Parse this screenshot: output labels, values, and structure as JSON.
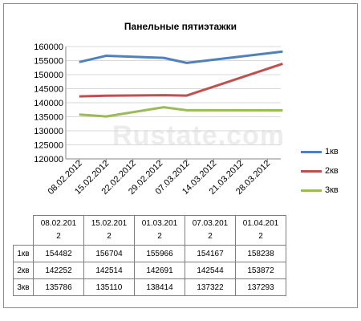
{
  "chart_data": {
    "type": "line",
    "title": "Панельные пятиэтажки",
    "watermark": "Rustate.com",
    "x_ticks": [
      "08.02.2012",
      "15.02.2012",
      "22.02.2012",
      "29.02.2012",
      "07.03.2012",
      "14.03.2012",
      "21.03.2012",
      "28.03.2012"
    ],
    "y_ticks": [
      "120000",
      "125000",
      "130000",
      "135000",
      "140000",
      "145000",
      "150000",
      "155000",
      "160000"
    ],
    "ylim": [
      120000,
      160000
    ],
    "grid": "horizontal",
    "legend_position": "right",
    "categories": [
      "08.02.2012",
      "15.02.2012",
      "01.03.2012",
      "07.03.2012",
      "01.04.2012"
    ],
    "series": [
      {
        "name": "1кв",
        "color": "#4f81bd",
        "values": [
          154482,
          156704,
          155966,
          154167,
          158238
        ]
      },
      {
        "name": "2кв",
        "color": "#c0504d",
        "values": [
          142252,
          142514,
          142691,
          142544,
          153872
        ]
      },
      {
        "name": "3кв",
        "color": "#9bbb59",
        "values": [
          135786,
          135110,
          138414,
          137322,
          137293
        ]
      }
    ]
  },
  "table": {
    "headers": [
      "08.02.201\n2",
      "15.02.201\n2",
      "01.03.201\n2",
      "07.03.201\n2",
      "01.04.201\n2"
    ],
    "rows": [
      {
        "label": "1кв",
        "values": [
          "154482",
          "156704",
          "155966",
          "154167",
          "158238"
        ]
      },
      {
        "label": "2кв",
        "values": [
          "142252",
          "142514",
          "142691",
          "142544",
          "153872"
        ]
      },
      {
        "label": "3кв",
        "values": [
          "135786",
          "135110",
          "138414",
          "137322",
          "137293"
        ]
      }
    ]
  }
}
